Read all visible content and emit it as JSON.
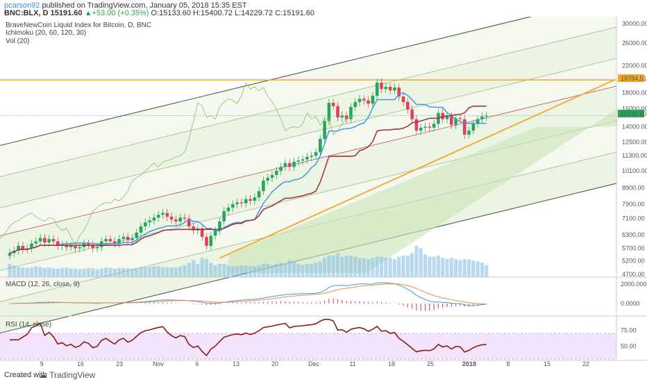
{
  "header": {
    "user": "pcarson92",
    "published": "published on TradingView.com, January 05, 2018 15:35 EST",
    "symbol": "BNC:BLX, D",
    "price": "15191.60",
    "change": "+53.00 (+0.35%)",
    "open": "O:15133.60",
    "high": "H:15400.72",
    "low": "L:14229.72",
    "close": "C:15191.60"
  },
  "chart_labels": {
    "title": "BraveNewCoin Liquid Index for Bitcoin, D, BNC",
    "ichimoku": "Ichimoku (20, 60, 120, 30)",
    "vol": "Vol (20)",
    "macd": "MACD (12, 26, close, 9)",
    "rsi": "RSI (14, close)",
    "level_label": "19784.51",
    "price_label": "15191.60"
  },
  "footer": {
    "created": "Created with",
    "brand": "TradingView"
  },
  "colors": {
    "up": "#26a65b",
    "down": "#e0405a",
    "tenkan": "#3d9ae0",
    "kijun": "#a0383a",
    "hline": "#f5a623",
    "trend": "#f5a623",
    "macd": "#3d9ae0",
    "signal": "#f08a3c",
    "rsi": "#8b1a1a"
  },
  "chart_data": {
    "type": "candlestick",
    "price_axis": {
      "scale": "log",
      "ticks": [
        4700,
        5200,
        5700,
        6300,
        7100,
        7900,
        8900,
        10100,
        11300,
        12500,
        14000,
        16000,
        18000,
        22000,
        26000,
        30000
      ]
    },
    "x_ticks": [
      "9",
      "16",
      "23",
      "Nov",
      "6",
      "13",
      "20",
      "Dec",
      "11",
      "18",
      "25",
      "2018",
      "8",
      "15",
      "22"
    ],
    "horizontal_level": 19784.51,
    "last_price": 15191.6,
    "closes": [
      5500,
      5600,
      5800,
      5650,
      5700,
      5900,
      6000,
      6150,
      5950,
      6100,
      6000,
      5800,
      5850,
      5750,
      5800,
      5700,
      5750,
      5900,
      5850,
      5700,
      5750,
      6000,
      6100,
      6000,
      5900,
      6100,
      6200,
      6050,
      6150,
      6400,
      6700,
      6900,
      7000,
      7150,
      7300,
      7400,
      7200,
      7050,
      6950,
      7150,
      7100,
      6700,
      6500,
      6600,
      6200,
      5800,
      6250,
      6500,
      6950,
      7500,
      7700,
      7900,
      8000,
      7950,
      8200,
      8100,
      8300,
      8700,
      9400,
      9600,
      9800,
      10100,
      10400,
      10700,
      10400,
      10800,
      10900,
      11000,
      11200,
      11300,
      11600,
      12800,
      14600,
      16700,
      16300,
      15000,
      15200,
      14800,
      16200,
      16800,
      17200,
      17000,
      16600,
      17600,
      19400,
      18500,
      18800,
      18300,
      18700,
      17500,
      16800,
      15900,
      14800,
      13600,
      13900,
      14000,
      13900,
      14300,
      15500,
      14800,
      15100,
      14200,
      14900,
      14800,
      13200,
      13600,
      14300,
      14800,
      15100,
      15191.6
    ],
    "volume": [
      0.55,
      0.48,
      0.42,
      0.4,
      0.38,
      0.4,
      0.45,
      0.42,
      0.38,
      0.4,
      0.36,
      0.35,
      0.38,
      0.4,
      0.36,
      0.35,
      0.33,
      0.35,
      0.37,
      0.36,
      0.33,
      0.35,
      0.4,
      0.38,
      0.35,
      0.37,
      0.38,
      0.36,
      0.35,
      0.38,
      0.4,
      0.42,
      0.42,
      0.45,
      0.45,
      0.42,
      0.4,
      0.4,
      0.4,
      0.45,
      0.5,
      0.6,
      0.7,
      0.55,
      0.8,
      0.75,
      0.6,
      0.5,
      0.55,
      0.55,
      0.5,
      0.45,
      0.45,
      0.5,
      0.48,
      0.45,
      0.45,
      0.5,
      0.55,
      0.55,
      0.5,
      0.55,
      0.6,
      0.55,
      0.7,
      0.65,
      0.55,
      0.5,
      0.55,
      0.55,
      0.6,
      0.65,
      0.8,
      0.9,
      0.9,
      1.0,
      0.85,
      0.9,
      0.9,
      0.85,
      0.8,
      0.8,
      0.75,
      0.8,
      0.85,
      0.85,
      0.8,
      0.8,
      0.75,
      0.85,
      0.9,
      0.9,
      1.0,
      1.3,
      1.2,
      0.95,
      0.85,
      0.85,
      0.9,
      0.8,
      0.75,
      0.8,
      0.75,
      0.7,
      0.75,
      0.75,
      0.7,
      0.65,
      0.6,
      0.5
    ],
    "rsi_axis_ticks": [
      50,
      75
    ],
    "macd_axis_ticks": [
      "0.0000",
      "2000.0000"
    ]
  }
}
